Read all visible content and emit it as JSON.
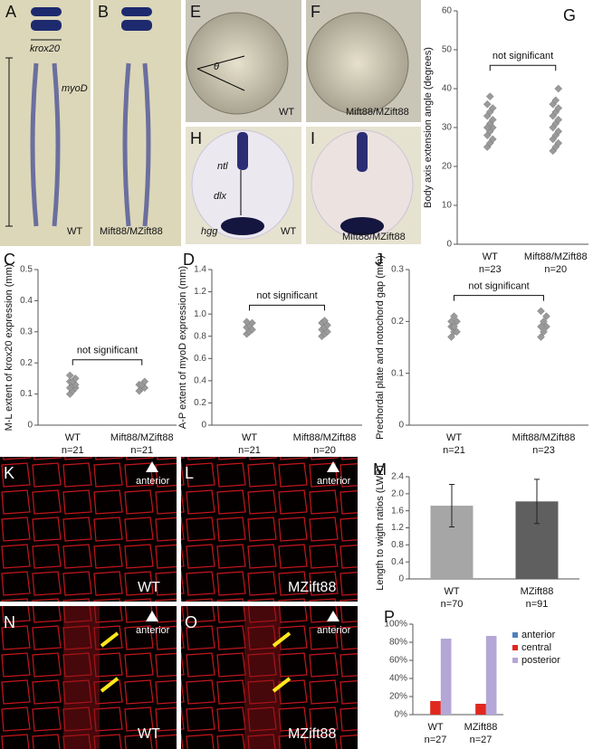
{
  "panels": [
    {
      "letter": "A",
      "labels": [
        "krox20",
        "myoD",
        "WT"
      ]
    },
    {
      "letter": "B",
      "labels": [
        "Mift88/MZift88"
      ]
    },
    {
      "letter": "E",
      "labels": [
        "θ",
        "WT"
      ]
    },
    {
      "letter": "F",
      "labels": [
        "Mift88/MZift88"
      ]
    },
    {
      "letter": "H",
      "labels": [
        "ntl",
        "dlx",
        "hgg",
        "WT"
      ]
    },
    {
      "letter": "I",
      "labels": [
        "Mift88/MZift88"
      ]
    },
    {
      "letter": "K",
      "labels": [
        "anterior",
        "WT"
      ]
    },
    {
      "letter": "L",
      "labels": [
        "anterior",
        "MZift88"
      ]
    },
    {
      "letter": "N",
      "labels": [
        "anterior",
        "WT"
      ]
    },
    {
      "letter": "O",
      "labels": [
        "anterior",
        "MZift88"
      ]
    }
  ],
  "chart_data": [
    {
      "type": "strip",
      "panel": "G",
      "ylabel": "Body axis extension angle (degrees)",
      "categories": [
        "WT",
        "Mift88/MZift88"
      ],
      "sample_sizes": [
        "n=23",
        "n=20"
      ],
      "values": [
        [
          25,
          26,
          27,
          28,
          29,
          30,
          30,
          31,
          32,
          33,
          34,
          35,
          36,
          38
        ],
        [
          24,
          25,
          26,
          27,
          28,
          29,
          30,
          31,
          32,
          33,
          34,
          35,
          36,
          37,
          40
        ]
      ],
      "color": "#9a9a9a",
      "annotation": "not significant",
      "ylim": [
        0,
        60
      ],
      "yticks": [
        0,
        10,
        20,
        30,
        40,
        50,
        60
      ]
    },
    {
      "type": "strip",
      "panel": "C",
      "ylabel": "M-L extent of krox20 expression (mm)",
      "categories": [
        "WT",
        "Mift88/MZift88"
      ],
      "sample_sizes": [
        "n=21",
        "n=21"
      ],
      "values": [
        [
          0.1,
          0.11,
          0.12,
          0.12,
          0.13,
          0.13,
          0.14,
          0.14,
          0.15,
          0.16
        ],
        [
          0.11,
          0.12,
          0.12,
          0.13,
          0.13,
          0.14
        ]
      ],
      "color": "#9a9a9a",
      "annotation": "not significant",
      "ylim": [
        0,
        0.5
      ],
      "yticks": [
        0,
        0.1,
        0.2,
        0.3,
        0.4,
        0.5
      ]
    },
    {
      "type": "strip",
      "panel": "D",
      "ylabel": "A-P extent of myoD expression (mm)",
      "categories": [
        "WT",
        "Mift88/MZift88"
      ],
      "sample_sizes": [
        "n=21",
        "n=20"
      ],
      "values": [
        [
          0.82,
          0.84,
          0.86,
          0.88,
          0.9,
          0.92,
          0.93
        ],
        [
          0.8,
          0.82,
          0.84,
          0.86,
          0.88,
          0.9,
          0.92,
          0.94
        ]
      ],
      "color": "#9a9a9a",
      "annotation": "not significant",
      "ylim": [
        0,
        1.4
      ],
      "yticks": [
        0,
        0.2,
        0.4,
        0.6,
        0.8,
        {
          "value": 1,
          "label": "1.0"
        },
        1.2,
        1.4
      ]
    },
    {
      "type": "strip",
      "panel": "J",
      "ylabel": "Prechordal plate and notochord gap (mm)",
      "categories": [
        "WT",
        "Mift88/MZift88"
      ],
      "sample_sizes": [
        "n=21",
        "n=23"
      ],
      "values": [
        [
          0.17,
          0.18,
          0.18,
          0.19,
          0.19,
          0.2,
          0.2,
          0.21
        ],
        [
          0.17,
          0.18,
          0.19,
          0.19,
          0.2,
          0.21,
          0.22
        ]
      ],
      "color": "#9a9a9a",
      "annotation": "not significant",
      "ylim": [
        0,
        0.3
      ],
      "yticks": [
        0,
        0.1,
        0.2,
        0.3
      ]
    },
    {
      "type": "bar",
      "panel": "M",
      "ylabel": "Length to wigth ratios (LWR)",
      "categories": [
        "WT",
        "MZift88"
      ],
      "sample_sizes": [
        "n=70",
        "n=91"
      ],
      "values": [
        1.72,
        1.82
      ],
      "errors": [
        0.5,
        0.52
      ],
      "colors": [
        "#a6a6a6",
        "#5f5f5f"
      ],
      "ylim": [
        0,
        2.4
      ],
      "yticks": [
        0,
        0.4,
        0.8,
        1.2,
        1.6,
        {
          "value": 2,
          "label": "2.0"
        },
        2.4
      ]
    },
    {
      "type": "grouped_bar",
      "panel": "P",
      "categories": [
        "WT",
        "MZift88"
      ],
      "sample_sizes": [
        "n=27",
        "n=27"
      ],
      "series": [
        {
          "name": "anterior",
          "color": "#4f81bd",
          "values": [
            0,
            0
          ]
        },
        {
          "name": "central",
          "color": "#e0281f",
          "values": [
            15,
            12
          ]
        },
        {
          "name": "posterior",
          "color": "#b4a7d6",
          "values": [
            84,
            87
          ]
        }
      ],
      "ylim": [
        0,
        100
      ],
      "yticks": [
        {
          "value": 0,
          "label": "0%"
        },
        {
          "value": 20,
          "label": "20%"
        },
        {
          "value": 40,
          "label": "40%"
        },
        {
          "value": 60,
          "label": "60%"
        },
        {
          "value": 80,
          "label": "80%"
        },
        {
          "value": 100,
          "label": "100%"
        }
      ]
    }
  ]
}
